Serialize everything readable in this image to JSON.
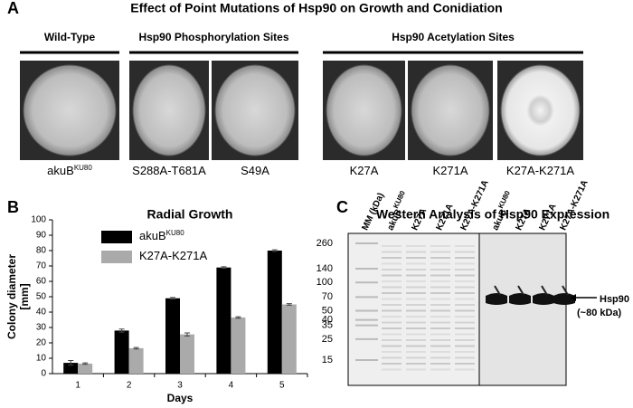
{
  "panel_letters": [
    "A",
    "B",
    "C"
  ],
  "panel_a": {
    "title": "Effect of Point Mutations of Hsp90 on Growth and Conidiation",
    "groups": [
      "Wild-Type",
      "Hsp90 Phosphorylation Sites",
      "Hsp90 Acetylation Sites"
    ],
    "plates": [
      {
        "label": "akuB",
        "superscript": "KU80"
      },
      {
        "label": "S288A-T681A"
      },
      {
        "label": "S49A"
      },
      {
        "label": "K27A"
      },
      {
        "label": "K271A"
      },
      {
        "label": "K27A-K271A"
      }
    ]
  },
  "chart_data": {
    "type": "bar",
    "title": "Radial Growth",
    "xlabel": "Days",
    "ylabel": [
      "Colony diameter",
      "[mm]"
    ],
    "categories": [
      "1",
      "2",
      "3",
      "4",
      "5"
    ],
    "series": [
      {
        "name": "akuB",
        "name_superscript": "KU80",
        "color": "#000000",
        "values": [
          7,
          28,
          49,
          69,
          80
        ],
        "errors": [
          1.5,
          1,
          0.5,
          0.5,
          0.5
        ]
      },
      {
        "name": "K27A-K271A",
        "color": "#aaaaaa",
        "values": [
          6.5,
          16.5,
          25.5,
          36.5,
          45
        ],
        "errors": [
          0.5,
          0.5,
          1,
          0.5,
          0.5
        ]
      }
    ],
    "ylim": [
      0,
      100
    ],
    "yticks": [
      0,
      10,
      20,
      30,
      40,
      50,
      60,
      70,
      80,
      90,
      100
    ],
    "legend": "upper-left"
  },
  "panel_c": {
    "title": "Western Analysis of Hsp90 Expression",
    "lanes": [
      {
        "label": "MM (kDa)"
      },
      {
        "label": "akuB",
        "superscript": "KU80"
      },
      {
        "label": "K27A"
      },
      {
        "label": "K271A"
      },
      {
        "label": "K27A-K271A"
      },
      {
        "label": "akuB",
        "superscript": "KU80"
      },
      {
        "label": "K27A"
      },
      {
        "label": "K271A"
      },
      {
        "label": "K27A-K271A"
      }
    ],
    "markers": [
      260,
      140,
      100,
      70,
      50,
      40,
      35,
      25,
      15
    ],
    "annotation": [
      "Hsp90",
      "(~80 kDa)"
    ]
  }
}
